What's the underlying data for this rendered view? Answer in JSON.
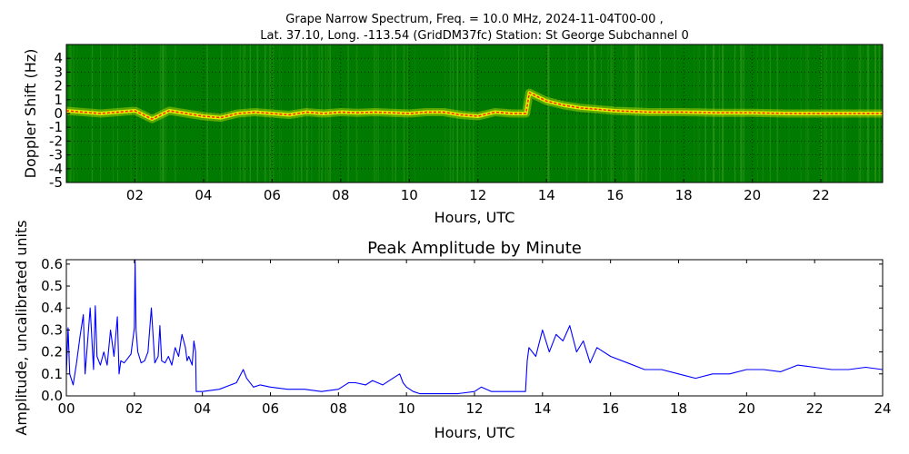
{
  "chart_data": [
    {
      "type": "heatmap",
      "title_line1": "Grape Narrow Spectrum, Freq. = 10.0 MHz, 2024-11-04T00-00 ,",
      "title_line2": "Lat.  37.10, Long. -113.54 (GridDM37fc) Station: St George Subchannel 0",
      "xlabel": "Hours, UTC",
      "ylabel": "Doppler Shift (Hz)",
      "xlim": [
        0,
        23.8
      ],
      "ylim": [
        -5,
        5
      ],
      "x_ticks": [
        "02",
        "04",
        "06",
        "08",
        "10",
        "12",
        "14",
        "16",
        "18",
        "20",
        "22"
      ],
      "x_tick_values": [
        2,
        4,
        6,
        8,
        10,
        12,
        14,
        16,
        18,
        20,
        22
      ],
      "y_ticks": [
        "4",
        "3",
        "2",
        "1",
        "0",
        "-1",
        "-2",
        "-3",
        "-4",
        "-5"
      ],
      "y_tick_values": [
        4,
        3,
        2,
        1,
        0,
        -1,
        -2,
        -3,
        -4,
        -5
      ],
      "grid": true,
      "colors": {
        "background": "#007a00",
        "signal": "#ffff00",
        "peak": "#ff2000"
      },
      "doppler_trace": {
        "x": [
          0,
          0.5,
          1,
          1.5,
          2,
          2.5,
          3,
          3.5,
          4,
          4.5,
          5,
          5.5,
          6,
          6.5,
          7,
          7.5,
          8,
          8.5,
          9,
          9.5,
          10,
          10.5,
          11,
          11.5,
          12,
          12.5,
          13,
          13.4,
          13.5,
          14,
          14.5,
          15,
          15.5,
          16,
          17,
          18,
          19,
          20,
          21,
          22,
          23,
          23.8
        ],
        "y": [
          0.2,
          0.1,
          0.0,
          0.1,
          0.2,
          -0.4,
          0.2,
          0.0,
          -0.2,
          -0.3,
          0.0,
          0.1,
          0.0,
          -0.1,
          0.1,
          0.0,
          0.1,
          0.05,
          0.1,
          0.05,
          0.0,
          0.1,
          0.1,
          -0.1,
          -0.2,
          0.1,
          0.0,
          0.0,
          1.5,
          0.9,
          0.6,
          0.4,
          0.3,
          0.2,
          0.1,
          0.1,
          0.05,
          0.05,
          0.0,
          0.0,
          0.0,
          0.0
        ]
      }
    },
    {
      "type": "line",
      "title": "Peak Amplitude by Minute",
      "xlabel": "Hours, UTC",
      "ylabel": "Amplitude, uncalibrated units",
      "xlim": [
        0,
        24
      ],
      "ylim": [
        0,
        0.62
      ],
      "x_ticks": [
        "00",
        "02",
        "04",
        "06",
        "08",
        "10",
        "12",
        "14",
        "16",
        "18",
        "20",
        "22",
        "24"
      ],
      "x_tick_values": [
        0,
        2,
        4,
        6,
        8,
        10,
        12,
        14,
        16,
        18,
        20,
        22,
        24
      ],
      "y_ticks": [
        "0.0",
        "0.1",
        "0.2",
        "0.3",
        "0.4",
        "0.5",
        "0.6"
      ],
      "y_tick_values": [
        0,
        0.1,
        0.2,
        0.3,
        0.4,
        0.5,
        0.6
      ],
      "line_color": "#0000ff",
      "series": [
        {
          "x": [
            0,
            0.05,
            0.1,
            0.2,
            0.3,
            0.4,
            0.5,
            0.55,
            0.6,
            0.7,
            0.8,
            0.85,
            0.9,
            1.0,
            1.1,
            1.2,
            1.3,
            1.4,
            1.5,
            1.55,
            1.6,
            1.7,
            1.8,
            1.9,
            2.0,
            2.02,
            2.05,
            2.1,
            2.2,
            2.3,
            2.4,
            2.5,
            2.6,
            2.7,
            2.75,
            2.8,
            2.9,
            3.0,
            3.1,
            3.2,
            3.3,
            3.4,
            3.5,
            3.55,
            3.6,
            3.7,
            3.75,
            3.8,
            3.82,
            4.0,
            4.5,
            5.0,
            5.2,
            5.3,
            5.5,
            5.7,
            6.0,
            6.5,
            7.0,
            7.5,
            8.0,
            8.3,
            8.5,
            8.8,
            9.0,
            9.3,
            9.6,
            9.8,
            9.9,
            10.0,
            10.2,
            10.4,
            10.6,
            10.8,
            11.0,
            11.5,
            12.0,
            12.2,
            12.5,
            13.0,
            13.5,
            13.55,
            13.6,
            13.8,
            14.0,
            14.2,
            14.4,
            14.6,
            14.8,
            15.0,
            15.2,
            15.4,
            15.6,
            16.0,
            16.5,
            17.0,
            17.5,
            18.0,
            18.5,
            19.0,
            19.5,
            20.0,
            20.5,
            21.0,
            21.5,
            22.0,
            22.5,
            23.0,
            23.5,
            24.0
          ],
          "y": [
            0.1,
            0.31,
            0.1,
            0.05,
            0.15,
            0.27,
            0.37,
            0.1,
            0.2,
            0.4,
            0.12,
            0.41,
            0.18,
            0.14,
            0.2,
            0.14,
            0.3,
            0.18,
            0.36,
            0.1,
            0.16,
            0.15,
            0.17,
            0.19,
            0.31,
            0.62,
            0.3,
            0.2,
            0.15,
            0.16,
            0.2,
            0.4,
            0.15,
            0.18,
            0.32,
            0.16,
            0.15,
            0.18,
            0.14,
            0.22,
            0.18,
            0.28,
            0.22,
            0.16,
            0.18,
            0.14,
            0.25,
            0.2,
            0.02,
            0.02,
            0.03,
            0.06,
            0.12,
            0.08,
            0.04,
            0.05,
            0.04,
            0.03,
            0.03,
            0.02,
            0.03,
            0.06,
            0.06,
            0.05,
            0.07,
            0.05,
            0.08,
            0.1,
            0.06,
            0.04,
            0.02,
            0.01,
            0.01,
            0.01,
            0.01,
            0.01,
            0.02,
            0.04,
            0.02,
            0.02,
            0.02,
            0.16,
            0.22,
            0.18,
            0.3,
            0.2,
            0.28,
            0.25,
            0.32,
            0.2,
            0.25,
            0.15,
            0.22,
            0.18,
            0.15,
            0.12,
            0.12,
            0.1,
            0.08,
            0.1,
            0.1,
            0.12,
            0.12,
            0.11,
            0.14,
            0.13,
            0.12,
            0.12,
            0.13,
            0.12
          ]
        }
      ]
    }
  ]
}
